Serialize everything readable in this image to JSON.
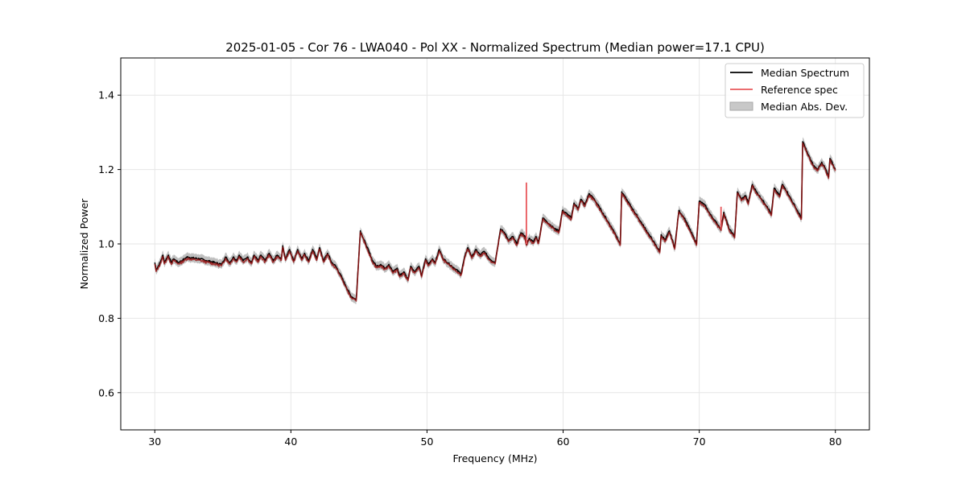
{
  "chart_data": {
    "type": "line",
    "title": "2025-01-05 - Cor 76 - LWA040 - Pol XX - Normalized Spectrum (Median power=17.1 CPU)",
    "xlabel": "Frequency (MHz)",
    "ylabel": "Normalized Power",
    "xlim": [
      27.5,
      82.5
    ],
    "ylim": [
      0.5,
      1.5
    ],
    "xticks": [
      30,
      40,
      50,
      60,
      70,
      80
    ],
    "yticks": [
      0.6,
      0.8,
      1.0,
      1.2,
      1.4
    ],
    "xtick_labels": [
      "30",
      "40",
      "50",
      "60",
      "70",
      "80"
    ],
    "ytick_labels": [
      "0.6",
      "0.8",
      "1.0",
      "1.2",
      "1.4"
    ],
    "grid": true,
    "legend_position": "top-right",
    "legend": [
      "Median Spectrum",
      "Reference spec",
      "Median Abs. Dev."
    ],
    "colors": {
      "median": "#000000",
      "reference": "#e8585c",
      "mad_fill": "#b4b4b4"
    },
    "series": [
      {
        "name": "Median Spectrum",
        "x": [
          30.0,
          30.1,
          30.4,
          30.6,
          30.7,
          31.0,
          31.2,
          31.4,
          31.7,
          32.0,
          32.4,
          32.8,
          33.3,
          33.8,
          34.4,
          34.9,
          35.2,
          35.5,
          35.8,
          36.0,
          36.2,
          36.5,
          36.8,
          37.1,
          37.3,
          37.6,
          37.8,
          38.1,
          38.4,
          38.7,
          39.0,
          39.3,
          39.4,
          39.6,
          39.9,
          40.2,
          40.5,
          40.8,
          41.0,
          41.3,
          41.6,
          41.9,
          42.1,
          42.4,
          42.7,
          43.0,
          43.3,
          43.6,
          44.0,
          44.4,
          44.8,
          45.1,
          45.15,
          45.5,
          46.0,
          46.3,
          46.6,
          46.9,
          47.2,
          47.5,
          47.8,
          48.0,
          48.3,
          48.6,
          48.8,
          49.1,
          49.4,
          49.6,
          49.9,
          50.1,
          50.4,
          50.6,
          50.9,
          51.2,
          51.5,
          52.0,
          52.5,
          52.8,
          53.0,
          53.3,
          53.6,
          53.9,
          54.2,
          54.6,
          55.0,
          55.4,
          55.7,
          56.0,
          56.3,
          56.6,
          56.9,
          57.2,
          57.3,
          57.5,
          57.8,
          58.0,
          58.2,
          58.5,
          58.8,
          59.1,
          59.4,
          59.7,
          59.95,
          60.3,
          60.6,
          60.8,
          61.1,
          61.3,
          61.6,
          61.9,
          62.3,
          62.8,
          63.3,
          63.8,
          64.2,
          64.3,
          65.0,
          65.7,
          66.4,
          67.1,
          67.2,
          67.5,
          67.8,
          68.2,
          68.5,
          68.9,
          69.3,
          69.8,
          70.0,
          70.4,
          70.8,
          71.2,
          71.6,
          71.8,
          72.2,
          72.6,
          72.8,
          73.1,
          73.4,
          73.6,
          73.9,
          74.2,
          74.6,
          75.0,
          75.3,
          75.5,
          75.7,
          75.9,
          76.1,
          76.3,
          76.6,
          76.9,
          77.2,
          77.5,
          77.6,
          78.0,
          78.4,
          78.7,
          79.0,
          79.3,
          79.5,
          79.6,
          80.0
        ],
        "y": [
          0.95,
          0.93,
          0.95,
          0.97,
          0.95,
          0.97,
          0.95,
          0.96,
          0.95,
          0.955,
          0.965,
          0.962,
          0.96,
          0.955,
          0.95,
          0.945,
          0.965,
          0.95,
          0.965,
          0.955,
          0.97,
          0.955,
          0.965,
          0.95,
          0.97,
          0.955,
          0.97,
          0.955,
          0.975,
          0.955,
          0.97,
          0.96,
          0.995,
          0.96,
          0.985,
          0.955,
          0.985,
          0.96,
          0.975,
          0.955,
          0.985,
          0.96,
          0.99,
          0.955,
          0.975,
          0.95,
          0.94,
          0.92,
          0.89,
          0.86,
          0.85,
          1.035,
          1.03,
          1.0,
          0.955,
          0.94,
          0.945,
          0.935,
          0.945,
          0.925,
          0.935,
          0.915,
          0.925,
          0.905,
          0.94,
          0.925,
          0.94,
          0.915,
          0.96,
          0.945,
          0.96,
          0.95,
          0.985,
          0.96,
          0.95,
          0.935,
          0.92,
          0.97,
          0.99,
          0.965,
          0.985,
          0.97,
          0.98,
          0.96,
          0.95,
          1.04,
          1.03,
          1.01,
          1.02,
          1.0,
          1.03,
          1.02,
          1.0,
          1.015,
          1.005,
          1.02,
          1.005,
          1.07,
          1.06,
          1.05,
          1.04,
          1.035,
          1.09,
          1.08,
          1.07,
          1.11,
          1.095,
          1.12,
          1.105,
          1.135,
          1.12,
          1.09,
          1.06,
          1.03,
          1.0,
          1.14,
          1.1,
          1.06,
          1.02,
          0.98,
          1.025,
          1.01,
          1.035,
          0.99,
          1.09,
          1.07,
          1.04,
          1.0,
          1.115,
          1.105,
          1.08,
          1.06,
          1.04,
          1.085,
          1.04,
          1.02,
          1.14,
          1.12,
          1.13,
          1.11,
          1.16,
          1.14,
          1.12,
          1.1,
          1.08,
          1.15,
          1.14,
          1.13,
          1.16,
          1.15,
          1.13,
          1.11,
          1.09,
          1.07,
          1.275,
          1.24,
          1.21,
          1.2,
          1.22,
          1.2,
          1.18,
          1.23,
          1.2
        ]
      },
      {
        "name": "Reference spec",
        "note": "closely follows the median spectrum; notable spikes listed",
        "spikes": [
          {
            "x": 57.3,
            "y": 1.165
          },
          {
            "x": 71.6,
            "y": 1.1
          }
        ]
      },
      {
        "name": "Median Abs. Dev.",
        "approx_halfwidth": 0.012
      }
    ]
  }
}
